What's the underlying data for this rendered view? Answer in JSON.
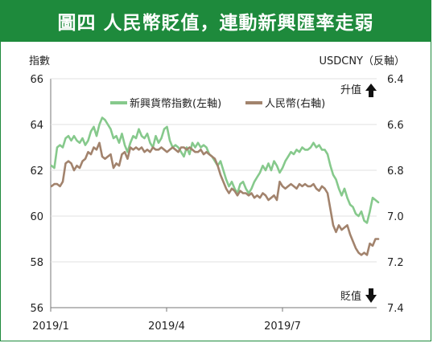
{
  "title": "圖四 人民幣貶值，連動新興匯率走弱",
  "chart_data": {
    "type": "line",
    "y_left_label": "指數",
    "y_right_label": "USDCNY（反軸）",
    "y_left_ticks": [
      "66",
      "64",
      "62",
      "60",
      "58",
      "56"
    ],
    "y_right_ticks": [
      "6.4",
      "6.6",
      "6.8",
      "7.0",
      "7.2",
      "7.4"
    ],
    "y_left_range": [
      56,
      66
    ],
    "y_right_range": [
      6.4,
      7.4
    ],
    "y_right_reversed": true,
    "x_ticks": [
      "2019/1",
      "2019/4",
      "2019/7"
    ],
    "annotation_up": "升值",
    "annotation_down": "貶值",
    "legend_position": "top-center",
    "series": [
      {
        "name": "新興貨幣指數(左軸)",
        "axis": "left",
        "color": "#86c98c",
        "values": [
          62.2,
          62.1,
          63.0,
          63.1,
          63.0,
          63.4,
          63.5,
          63.3,
          63.5,
          63.3,
          63.2,
          63.4,
          63.1,
          63.3,
          63.7,
          63.9,
          63.5,
          64.0,
          64.3,
          64.2,
          64.0,
          63.8,
          63.4,
          63.5,
          63.2,
          63.6,
          63.1,
          62.8,
          63.2,
          63.5,
          63.4,
          63.8,
          63.5,
          63.4,
          63.6,
          63.2,
          63.0,
          63.5,
          63.2,
          63.4,
          63.8,
          63.9,
          63.3,
          63.0,
          63.1,
          63.0,
          62.8,
          62.6,
          63.0,
          62.7,
          63.2,
          63.0,
          63.2,
          63.0,
          63.1,
          63.0,
          62.7,
          62.6,
          62.4,
          62.2,
          62.4,
          62.0,
          61.6,
          61.3,
          61.5,
          61.2,
          61.0,
          61.4,
          61.5,
          61.2,
          61.0,
          61.2,
          61.5,
          61.7,
          61.9,
          62.2,
          62.0,
          62.3,
          62.0,
          62.4,
          62.2,
          61.9,
          62.1,
          62.4,
          62.6,
          62.8,
          62.7,
          62.9,
          62.8,
          63.0,
          62.9,
          62.9,
          63.0,
          63.2,
          63.0,
          63.1,
          62.9,
          62.9,
          62.7,
          62.2,
          61.8,
          61.6,
          61.2,
          60.9,
          61.2,
          60.8,
          60.5,
          60.4,
          60.1,
          60.0,
          60.2,
          59.8,
          59.7,
          60.2,
          60.8,
          60.7,
          60.6
        ]
      },
      {
        "name": "人民幣(右軸)",
        "axis": "right",
        "color": "#a2836d",
        "values": [
          6.87,
          6.86,
          6.86,
          6.87,
          6.85,
          6.77,
          6.76,
          6.77,
          6.8,
          6.78,
          6.79,
          6.76,
          6.75,
          6.72,
          6.73,
          6.7,
          6.71,
          6.68,
          6.74,
          6.75,
          6.74,
          6.73,
          6.79,
          6.77,
          6.78,
          6.73,
          6.72,
          6.75,
          6.7,
          6.71,
          6.7,
          6.71,
          6.7,
          6.72,
          6.71,
          6.72,
          6.7,
          6.71,
          6.71,
          6.7,
          6.71,
          6.72,
          6.71,
          6.7,
          6.71,
          6.72,
          6.7,
          6.7,
          6.71,
          6.7,
          6.71,
          6.72,
          6.72,
          6.71,
          6.73,
          6.72,
          6.73,
          6.74,
          6.75,
          6.78,
          6.82,
          6.85,
          6.88,
          6.9,
          6.88,
          6.89,
          6.91,
          6.89,
          6.9,
          6.9,
          6.91,
          6.9,
          6.92,
          6.91,
          6.92,
          6.9,
          6.91,
          6.93,
          6.92,
          6.91,
          6.93,
          6.85,
          6.87,
          6.88,
          6.87,
          6.86,
          6.87,
          6.88,
          6.86,
          6.87,
          6.86,
          6.87,
          6.87,
          6.86,
          6.88,
          6.89,
          6.87,
          6.88,
          6.9,
          6.97,
          7.04,
          7.07,
          7.04,
          7.06,
          7.05,
          7.04,
          7.08,
          7.11,
          7.14,
          7.16,
          7.17,
          7.16,
          7.17,
          7.12,
          7.13,
          7.1,
          7.1
        ]
      }
    ]
  }
}
